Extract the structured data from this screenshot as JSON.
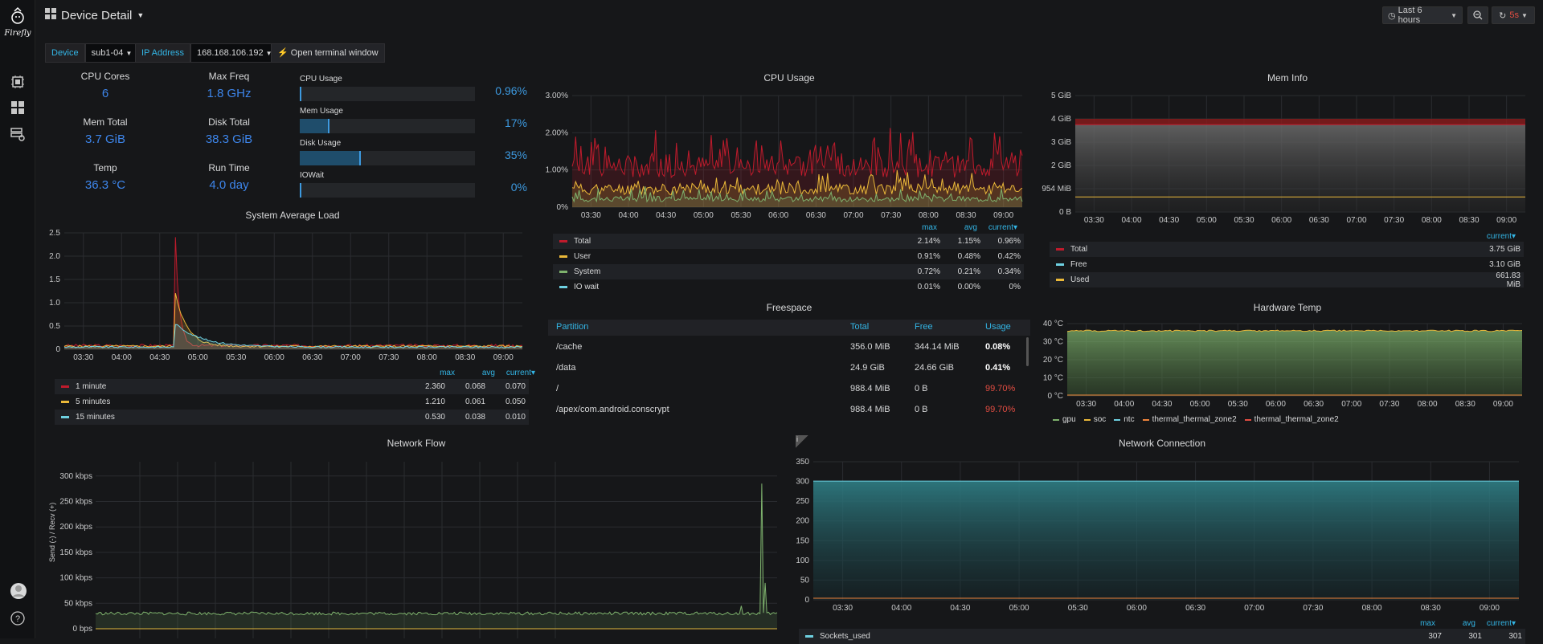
{
  "app": {
    "logo_text": "Firefly"
  },
  "header": {
    "title": "Device Detail",
    "time_range": "Last 6 hours",
    "refresh": "5s"
  },
  "vars": [
    {
      "label": "Device",
      "value": "sub1-04"
    },
    {
      "label": "IP Address",
      "value": "168.168.106.192"
    }
  ],
  "terminal_button": "Open terminal window",
  "stats": [
    {
      "label": "CPU Cores",
      "value": "6"
    },
    {
      "label": "Max Freq",
      "value": "1.8 GHz"
    },
    {
      "label": "Mem Total",
      "value": "3.7 GiB"
    },
    {
      "label": "Disk Total",
      "value": "38.3 GiB"
    },
    {
      "label": "Temp",
      "value": "36.3 °C"
    },
    {
      "label": "Run Time",
      "value": "4.0 day"
    }
  ],
  "gauges": [
    {
      "label": "CPU Usage",
      "value": "0.96%",
      "fraction": 0.0096
    },
    {
      "label": "Mem Usage",
      "value": "17%",
      "fraction": 0.17
    },
    {
      "label": "Disk Usage",
      "value": "35%",
      "fraction": 0.35
    },
    {
      "label": "IOWait",
      "value": "0%",
      "fraction": 0.0
    }
  ],
  "panels": {
    "cpu_usage": "CPU Usage",
    "mem_info": "Mem Info",
    "system_load": "System Average Load",
    "freespace": "Freespace",
    "hardware_temp": "Hardware Temp",
    "network_flow": "Network Flow",
    "network_connection": "Network Connection"
  },
  "legend_cols": {
    "max": "max",
    "avg": "avg",
    "current": "current▾"
  },
  "cpu_legend": [
    {
      "name": "Total",
      "color": "#bf1b2c",
      "max": "2.14%",
      "avg": "1.15%",
      "current": "0.96%"
    },
    {
      "name": "User",
      "color": "#eab839",
      "max": "0.91%",
      "avg": "0.48%",
      "current": "0.42%"
    },
    {
      "name": "System",
      "color": "#7eb26d",
      "max": "0.72%",
      "avg": "0.21%",
      "current": "0.34%"
    },
    {
      "name": "IO wait",
      "color": "#6ed0e0",
      "max": "0.01%",
      "avg": "0.00%",
      "current": "0%"
    }
  ],
  "mem_legend": [
    {
      "name": "Total",
      "color": "#bf1b2c",
      "current": "3.75 GiB"
    },
    {
      "name": "Free",
      "color": "#6ed0e0",
      "current": "3.10 GiB"
    },
    {
      "name": "Used",
      "color": "#eab839",
      "current": "661.83 MiB"
    }
  ],
  "load_legend": [
    {
      "name": "1 minute",
      "color": "#bf1b2c",
      "max": "2.360",
      "avg": "0.068",
      "current": "0.070"
    },
    {
      "name": "5 minutes",
      "color": "#eab839",
      "max": "1.210",
      "avg": "0.061",
      "current": "0.050"
    },
    {
      "name": "15 minutes",
      "color": "#6ed0e0",
      "max": "0.530",
      "avg": "0.038",
      "current": "0.010"
    }
  ],
  "freespace": {
    "headers": [
      "Partition",
      "Total",
      "Free",
      "Usage"
    ],
    "rows": [
      {
        "partition": "/cache",
        "total": "356.0 MiB",
        "free": "344.14 MiB",
        "usage": "0.08%",
        "warn": false
      },
      {
        "partition": "/data",
        "total": "24.9 GiB",
        "free": "24.66 GiB",
        "usage": "0.41%",
        "warn": false
      },
      {
        "partition": "/",
        "total": "988.4 MiB",
        "free": "0 B",
        "usage": "99.70%",
        "warn": true
      },
      {
        "partition": "/apex/com.android.conscrypt",
        "total": "988.4 MiB",
        "free": "0 B",
        "usage": "99.70%",
        "warn": true
      }
    ]
  },
  "temp_legend": [
    {
      "name": "gpu",
      "color": "#7eb26d"
    },
    {
      "name": "soc",
      "color": "#eab839"
    },
    {
      "name": "ntc",
      "color": "#6ed0e0"
    },
    {
      "name": "thermal_thermal_zone2",
      "color": "#ef843c"
    },
    {
      "name": "thermal_thermal_zone2",
      "color": "#e24d42"
    }
  ],
  "net_flow_ylabel": "Send (-) / Recv (+)",
  "conn_legend": [
    {
      "name": "Sockets_used",
      "color": "#6ed0e0",
      "max": "307",
      "avg": "301",
      "current": "301"
    }
  ],
  "chart_data": [
    {
      "type": "line",
      "title": "CPU Usage",
      "x": [
        "03:30",
        "04:00",
        "04:30",
        "05:00",
        "05:30",
        "06:00",
        "06:30",
        "07:00",
        "07:30",
        "08:00",
        "08:30",
        "09:00"
      ],
      "yticks": [
        "0%",
        "1.00%",
        "2.00%",
        "3.00%"
      ],
      "ylim": [
        0,
        3
      ],
      "series": [
        {
          "name": "Total",
          "color": "#bf1b2c",
          "max": 2.14,
          "avg": 1.15,
          "current": 0.96
        },
        {
          "name": "User",
          "color": "#eab839",
          "max": 0.91,
          "avg": 0.48,
          "current": 0.42
        },
        {
          "name": "System",
          "color": "#7eb26d",
          "max": 0.72,
          "avg": 0.21,
          "current": 0.34
        }
      ]
    },
    {
      "type": "area",
      "title": "Mem Info",
      "x": [
        "03:30",
        "04:00",
        "04:30",
        "05:00",
        "05:30",
        "06:00",
        "06:30",
        "07:00",
        "07:30",
        "08:00",
        "08:30",
        "09:00"
      ],
      "yticks": [
        "0 B",
        "954 MiB",
        "2 GiB",
        "3 GiB",
        "4 GiB",
        "5 GiB"
      ],
      "ylim_gib": [
        0,
        5
      ],
      "series": [
        {
          "name": "Total",
          "value_gib": 3.75
        },
        {
          "name": "Free",
          "value_gib": 3.1
        },
        {
          "name": "Used",
          "value_gib": 0.646
        }
      ]
    },
    {
      "type": "line",
      "title": "System Average Load",
      "x": [
        "03:30",
        "04:00",
        "04:30",
        "05:00",
        "05:30",
        "06:00",
        "06:30",
        "07:00",
        "07:30",
        "08:00",
        "08:30",
        "09:00"
      ],
      "yticks": [
        "0",
        "0.5",
        "1.0",
        "1.5",
        "2.0",
        "2.5"
      ],
      "ylim": [
        0,
        2.5
      ],
      "series": [
        {
          "name": "1 minute",
          "max": 2.36,
          "avg": 0.068,
          "current": 0.07
        },
        {
          "name": "5 minutes",
          "max": 1.21,
          "avg": 0.061,
          "current": 0.05
        },
        {
          "name": "15 minutes",
          "max": 0.53,
          "avg": 0.038,
          "current": 0.01
        }
      ]
    },
    {
      "type": "area",
      "title": "Hardware Temp",
      "x": [
        "03:30",
        "04:00",
        "04:30",
        "05:00",
        "05:30",
        "06:00",
        "06:30",
        "07:00",
        "07:30",
        "08:00",
        "08:30",
        "09:00"
      ],
      "yticks": [
        "0 °C",
        "10 °C",
        "20 °C",
        "30 °C",
        "40 °C"
      ],
      "ylim": [
        0,
        40
      ],
      "series": [
        {
          "name": "gpu",
          "approx": 36
        },
        {
          "name": "soc",
          "approx": 36.3
        }
      ]
    },
    {
      "type": "line",
      "title": "Network Flow",
      "yticks": [
        "0 bps",
        "50 kbps",
        "100 kbps",
        "150 kbps",
        "200 kbps",
        "250 kbps",
        "300 kbps"
      ],
      "series": [
        {
          "name": "Recv",
          "baseline_kbps": 30,
          "peak_kbps": 285
        }
      ]
    },
    {
      "type": "area",
      "title": "Network Connection",
      "x": [
        "03:30",
        "04:00",
        "04:30",
        "05:00",
        "05:30",
        "06:00",
        "06:30",
        "07:00",
        "07:30",
        "08:00",
        "08:30",
        "09:00"
      ],
      "yticks": [
        "0",
        "50",
        "100",
        "150",
        "200",
        "250",
        "300",
        "350"
      ],
      "ylim": [
        0,
        350
      ],
      "series": [
        {
          "name": "Sockets_used",
          "max": 307,
          "avg": 301,
          "current": 301
        }
      ]
    }
  ]
}
